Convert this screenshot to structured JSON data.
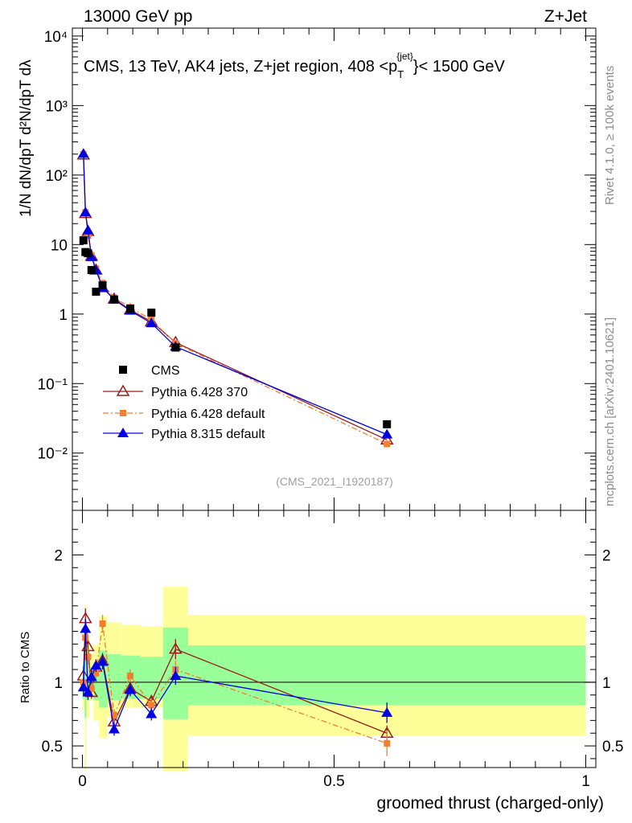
{
  "header": {
    "left": "13000 GeV pp",
    "right": "Z+Jet"
  },
  "side": {
    "rivet": "Rivet 4.1.0, ≥ 100k events",
    "mcplots": "mcplots.cern.ch [arXiv:2401.10621]"
  },
  "colors": {
    "cms": "#000000",
    "p6_370": "#9b1b1b",
    "p6_def": "#f47d30",
    "p8": "#0000e0",
    "band_outer": "#ffff99",
    "band_inner": "#99ff99"
  },
  "chart_data": {
    "type": "line",
    "title": "CMS, 13 TeV, AK4 jets, Z+jet region, 408 <p_T^{jet}> < 1500 GeV",
    "title_parts": {
      "main": "CMS, 13 TeV, AK4 jets, Z+jet region, 408 <p",
      "sub": "T",
      "sup": "{jet}",
      "end": "}< 1500 GeV"
    },
    "watermark": "(CMS_2021_I1920187)",
    "xlabel": "groomed thrust (charged-only)",
    "ylabel_top": "1/N dN/dpT d²N/dpT dλ",
    "ylabel_ratio": "Ratio to CMS",
    "xlim": [
      -0.02,
      1.02
    ],
    "ylim_top": [
      0.0015,
      13000
    ],
    "ylim_ratio": [
      0.33,
      2.35
    ],
    "x_ticks": [
      "0",
      "0.5",
      "1"
    ],
    "y_ticks_top": [
      "10⁻²",
      "10⁻¹",
      "1",
      "10",
      "10²",
      "10³",
      "10⁴"
    ],
    "y_ticks_ratio": [
      "0.5",
      "1",
      "2"
    ],
    "x": [
      0.002,
      0.006,
      0.011,
      0.018,
      0.027,
      0.04,
      0.063,
      0.095,
      0.137,
      0.185,
      0.605
    ],
    "series": [
      {
        "name": "CMS",
        "values": [
          11.5,
          7.8,
          7.5,
          4.3,
          2.1,
          2.6,
          1.62,
          1.2,
          1.05,
          0.33,
          0.026
        ]
      },
      {
        "name": "Pythia 6.428 370",
        "values": [
          195,
          28,
          15.5,
          6.8,
          4.3,
          2.4,
          1.65,
          1.15,
          0.78,
          0.39,
          0.0155
        ]
      },
      {
        "name": "Pythia 6.428 default",
        "values": [
          198,
          29,
          13.5,
          7.0,
          4.5,
          2.8,
          1.72,
          1.25,
          0.83,
          0.38,
          0.0135
        ]
      },
      {
        "name": "Pythia 8.315 default",
        "values": [
          202,
          29,
          16,
          6.6,
          4.3,
          2.4,
          1.62,
          1.12,
          0.74,
          0.34,
          0.0185
        ]
      }
    ],
    "ratio_series": [
      {
        "name": "Pythia 6.428 370",
        "values": [
          1.05,
          1.5,
          1.28,
          0.92,
          1.12,
          1.17,
          0.69,
          0.95,
          0.85,
          1.26,
          0.6
        ],
        "errors": [
          0.07,
          0.08,
          0.06,
          0.05,
          0.05,
          0.06,
          0.05,
          0.05,
          0.05,
          0.08,
          0.06
        ]
      },
      {
        "name": "Pythia 6.428 default",
        "values": [
          1.0,
          1.35,
          1.2,
          0.95,
          1.07,
          1.46,
          0.74,
          1.05,
          0.82,
          1.1,
          0.52
        ],
        "errors": [
          0.07,
          0.08,
          0.06,
          0.05,
          0.05,
          0.07,
          0.05,
          0.05,
          0.05,
          0.07,
          0.1
        ]
      },
      {
        "name": "Pythia 8.315 default",
        "values": [
          0.96,
          1.42,
          0.92,
          1.04,
          1.13,
          1.16,
          0.63,
          0.94,
          0.75,
          1.05,
          0.76
        ],
        "errors": [
          0.07,
          0.08,
          0.06,
          0.05,
          0.05,
          0.06,
          0.05,
          0.05,
          0.05,
          0.07,
          0.08
        ]
      }
    ],
    "bands": {
      "edges": [
        0.0,
        0.004,
        0.008,
        0.014,
        0.022,
        0.033,
        0.05,
        0.077,
        0.115,
        0.16,
        0.21,
        1.0
      ],
      "outer": [
        [
          0.78,
          1.28
        ],
        [
          0.3,
          1.6
        ],
        [
          0.72,
          1.35
        ],
        [
          0.86,
          1.22
        ],
        [
          0.7,
          1.3
        ],
        [
          0.56,
          1.52
        ],
        [
          0.73,
          1.47
        ],
        [
          0.8,
          1.45
        ],
        [
          0.8,
          1.44
        ],
        [
          0.3,
          1.75
        ],
        [
          0.58,
          1.53
        ]
      ],
      "inner": [
        [
          0.87,
          1.14
        ],
        [
          0.72,
          1.3
        ],
        [
          0.86,
          1.18
        ],
        [
          0.92,
          1.12
        ],
        [
          0.86,
          1.16
        ],
        [
          0.8,
          1.25
        ],
        [
          0.86,
          1.22
        ],
        [
          0.87,
          1.21
        ],
        [
          0.87,
          1.2
        ],
        [
          0.71,
          1.43
        ],
        [
          0.82,
          1.29
        ]
      ]
    },
    "legend": [
      "CMS",
      "Pythia 6.428 370",
      "Pythia 6.428 default",
      "Pythia 8.315 default"
    ],
    "legend_position": "lower-left"
  }
}
